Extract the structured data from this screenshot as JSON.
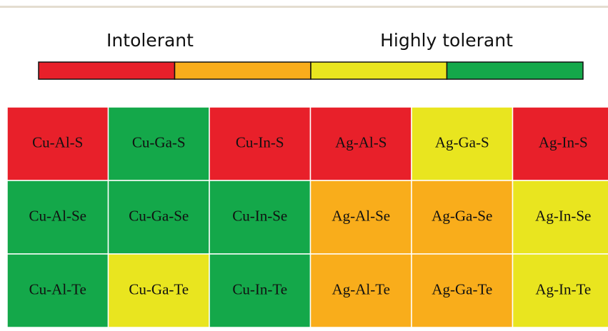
{
  "legend": {
    "low_label": "Intolerant",
    "high_label": "Highly tolerant",
    "colors": [
      "#e8202a",
      "#f9ad1b",
      "#e9e51f",
      "#14a84a"
    ]
  },
  "table": {
    "rows": [
      [
        {
          "label": "Cu-Al-S",
          "color": "#e8202a"
        },
        {
          "label": "Cu-Ga-S",
          "color": "#14a84a"
        },
        {
          "label": "Cu-In-S",
          "color": "#e8202a"
        },
        {
          "label": "Ag-Al-S",
          "color": "#e8202a"
        },
        {
          "label": "Ag-Ga-S",
          "color": "#e9e51f"
        },
        {
          "label": "Ag-In-S",
          "color": "#e8202a"
        }
      ],
      [
        {
          "label": "Cu-Al-Se",
          "color": "#14a84a"
        },
        {
          "label": "Cu-Ga-Se",
          "color": "#14a84a"
        },
        {
          "label": "Cu-In-Se",
          "color": "#14a84a"
        },
        {
          "label": "Ag-Al-Se",
          "color": "#f9ad1b"
        },
        {
          "label": "Ag-Ga-Se",
          "color": "#f9ad1b"
        },
        {
          "label": "Ag-In-Se",
          "color": "#e9e51f"
        }
      ],
      [
        {
          "label": "Cu-Al-Te",
          "color": "#14a84a"
        },
        {
          "label": "Cu-Ga-Te",
          "color": "#e9e51f"
        },
        {
          "label": "Cu-In-Te",
          "color": "#14a84a"
        },
        {
          "label": "Ag-Al-Te",
          "color": "#f9ad1b"
        },
        {
          "label": "Ag-Ga-Te",
          "color": "#f9ad1b"
        },
        {
          "label": "Ag-In-Te",
          "color": "#e9e51f"
        }
      ]
    ]
  }
}
